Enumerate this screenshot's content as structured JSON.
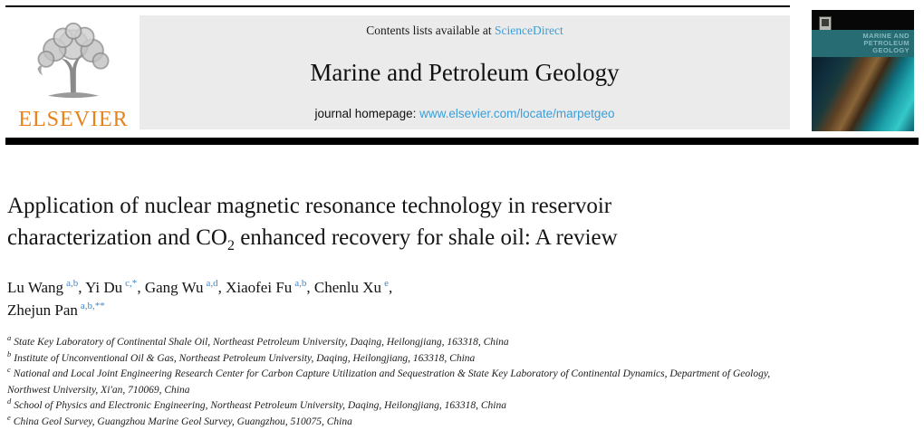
{
  "header": {
    "contents_line": {
      "prefix": "Contents lists available at ",
      "link": "ScienceDirect"
    },
    "journal_title": "Marine and Petroleum Geology",
    "homepage_line": {
      "prefix": "journal homepage: ",
      "url": "www.elsevier.com/locate/marpetgeo"
    },
    "elsevier_logo_text": "ELSEVIER",
    "cover": {
      "title_lines": [
        "MARINE AND",
        "PETROLEUM",
        "GEOLOGY"
      ]
    },
    "colors": {
      "link_blue": "#3b9ed9",
      "superscript_blue": "#4387c6",
      "elsevier_orange": "#e8821c",
      "banner_grey": "#ebebeb",
      "cover_teal": "#276c73"
    }
  },
  "article": {
    "title": {
      "line1": "Application of nuclear magnetic resonance technology in reservoir",
      "line2_pre": "characterization and CO",
      "line2_sub": "2",
      "line2_post": " enhanced recovery for shale oil: A review"
    },
    "authors": [
      {
        "name": "Lu Wang",
        "sup": "a,b",
        "trail": ", "
      },
      {
        "name": "Yi Du",
        "sup": "c,*",
        "trail": ", "
      },
      {
        "name": "Gang Wu",
        "sup": "a,d",
        "trail": ", "
      },
      {
        "name": "Xiaofei Fu",
        "sup": "a,b",
        "trail": ", "
      },
      {
        "name": "Chenlu Xu",
        "sup": "e",
        "trail": ",",
        "break_after": true
      },
      {
        "name": "Zhejun Pan",
        "sup": "a,b,**",
        "trail": ""
      }
    ],
    "affiliations": [
      {
        "sup": "a",
        "text": "State Key Laboratory of Continental Shale Oil, Northeast Petroleum University, Daqing, Heilongjiang, 163318, China"
      },
      {
        "sup": "b",
        "text": "Institute of Unconventional Oil & Gas, Northeast Petroleum University, Daqing, Heilongjiang, 163318, China"
      },
      {
        "sup": "c",
        "text": "National and Local Joint Engineering Research Center for Carbon Capture Utilization and Sequestration & State Key Laboratory of Continental Dynamics, Department of Geology, Northwest University, Xi'an, 710069, China"
      },
      {
        "sup": "d",
        "text": "School of Physics and Electronic Engineering, Northeast Petroleum University, Daqing, Heilongjiang, 163318, China"
      },
      {
        "sup": "e",
        "text": "China Geol Survey, Guangzhou Marine Geol Survey, Guangzhou, 510075, China"
      }
    ]
  }
}
